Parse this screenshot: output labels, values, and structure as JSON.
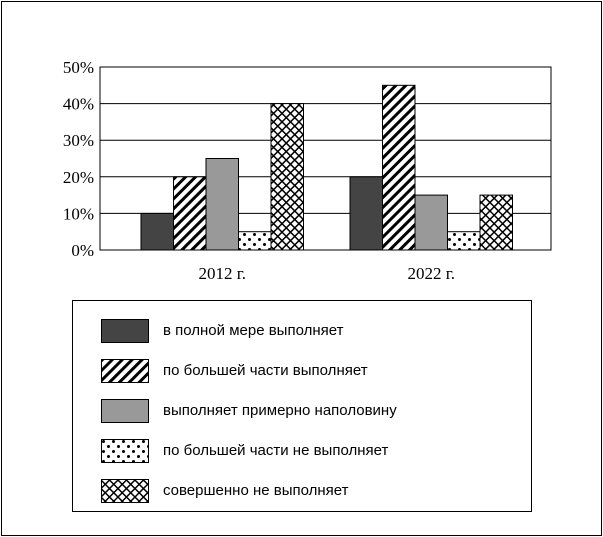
{
  "chart_data": {
    "type": "bar",
    "categories": [
      "2012 г.",
      "2022 г."
    ],
    "series": [
      {
        "name": "в полной мере выполняет",
        "values": [
          10,
          20
        ],
        "pattern": "solid-dark",
        "color": "#444444"
      },
      {
        "name": "по большей части выполняет",
        "values": [
          20,
          45
        ],
        "pattern": "diagonal-hatch",
        "color": "#000000"
      },
      {
        "name": "выполняет примерно наполовину",
        "values": [
          25,
          15
        ],
        "pattern": "solid-gray",
        "color": "#999999"
      },
      {
        "name": "по большей части не выполняет",
        "values": [
          5,
          5
        ],
        "pattern": "dots",
        "color": "#000000"
      },
      {
        "name": "совершенно не выполняет",
        "values": [
          40,
          15
        ],
        "pattern": "crosshatch",
        "color": "#000000"
      }
    ],
    "y_ticks": [
      "0%",
      "10%",
      "20%",
      "30%",
      "40%",
      "50%"
    ],
    "ylim": [
      0,
      50
    ],
    "grid": true,
    "legend_position": "bottom"
  }
}
